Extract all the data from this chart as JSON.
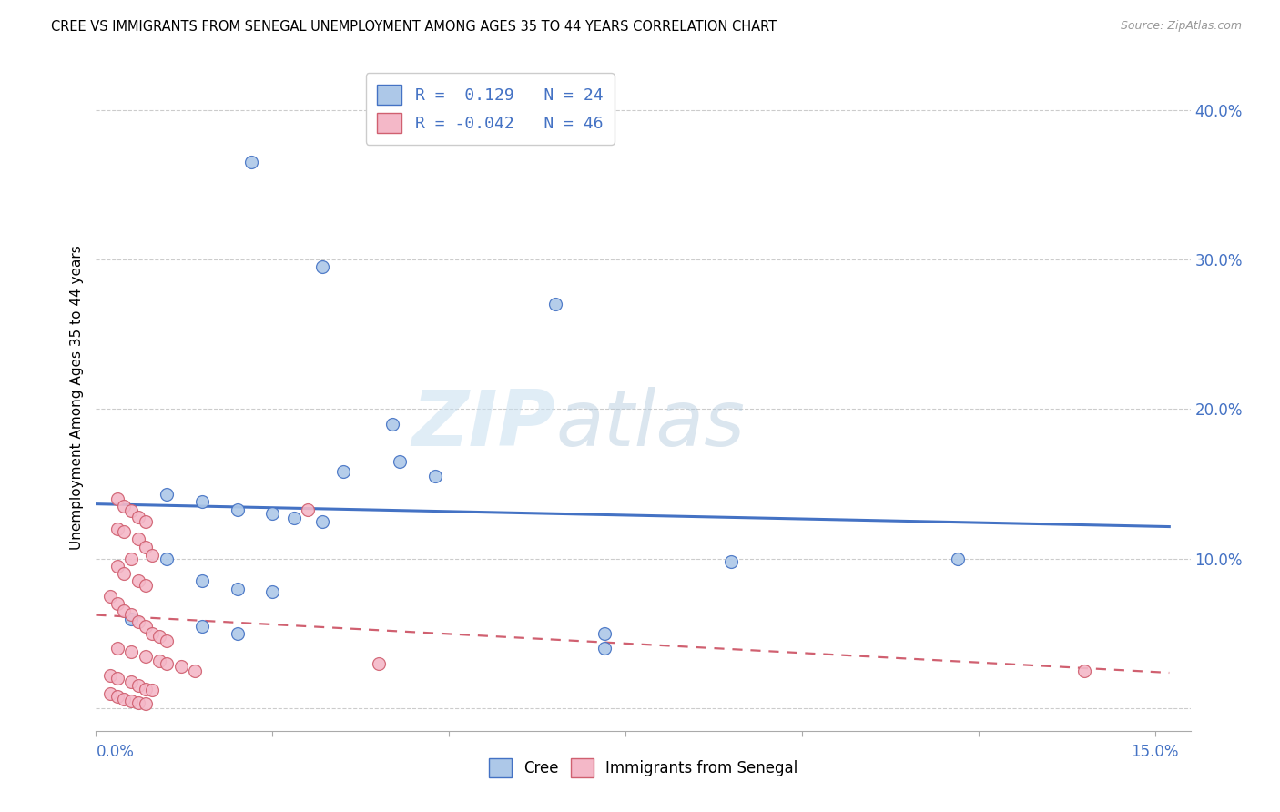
{
  "title": "CREE VS IMMIGRANTS FROM SENEGAL UNEMPLOYMENT AMONG AGES 35 TO 44 YEARS CORRELATION CHART",
  "source": "Source: ZipAtlas.com",
  "ylabel": "Unemployment Among Ages 35 to 44 years",
  "xlim": [
    0.0,
    0.155
  ],
  "ylim": [
    -0.015,
    0.43
  ],
  "yticks": [
    0.0,
    0.1,
    0.2,
    0.3,
    0.4
  ],
  "ytick_labels": [
    "",
    "10.0%",
    "20.0%",
    "30.0%",
    "40.0%"
  ],
  "xticks": [
    0.0,
    0.025,
    0.05,
    0.075,
    0.1,
    0.125,
    0.15
  ],
  "cree_R": "0.129",
  "cree_N": 24,
  "senegal_R": "-0.042",
  "senegal_N": 46,
  "cree_color": "#adc8e8",
  "cree_line_color": "#4472c4",
  "senegal_color": "#f4b8c8",
  "senegal_line_color": "#d06070",
  "watermark_zip": "ZIP",
  "watermark_atlas": "atlas",
  "cree_points": [
    [
      0.022,
      0.365
    ],
    [
      0.032,
      0.295
    ],
    [
      0.065,
      0.27
    ],
    [
      0.042,
      0.19
    ],
    [
      0.043,
      0.165
    ],
    [
      0.035,
      0.158
    ],
    [
      0.048,
      0.155
    ],
    [
      0.01,
      0.143
    ],
    [
      0.015,
      0.138
    ],
    [
      0.02,
      0.133
    ],
    [
      0.025,
      0.13
    ],
    [
      0.028,
      0.127
    ],
    [
      0.032,
      0.125
    ],
    [
      0.01,
      0.1
    ],
    [
      0.015,
      0.085
    ],
    [
      0.02,
      0.08
    ],
    [
      0.025,
      0.078
    ],
    [
      0.005,
      0.06
    ],
    [
      0.015,
      0.055
    ],
    [
      0.02,
      0.05
    ],
    [
      0.072,
      0.05
    ],
    [
      0.072,
      0.04
    ],
    [
      0.09,
      0.098
    ],
    [
      0.122,
      0.1
    ]
  ],
  "senegal_points": [
    [
      0.003,
      0.14
    ],
    [
      0.004,
      0.135
    ],
    [
      0.005,
      0.132
    ],
    [
      0.006,
      0.128
    ],
    [
      0.007,
      0.125
    ],
    [
      0.003,
      0.12
    ],
    [
      0.004,
      0.118
    ],
    [
      0.006,
      0.113
    ],
    [
      0.007,
      0.108
    ],
    [
      0.008,
      0.102
    ],
    [
      0.005,
      0.1
    ],
    [
      0.003,
      0.095
    ],
    [
      0.004,
      0.09
    ],
    [
      0.006,
      0.085
    ],
    [
      0.007,
      0.082
    ],
    [
      0.002,
      0.075
    ],
    [
      0.003,
      0.07
    ],
    [
      0.004,
      0.065
    ],
    [
      0.005,
      0.063
    ],
    [
      0.006,
      0.058
    ],
    [
      0.007,
      0.055
    ],
    [
      0.008,
      0.05
    ],
    [
      0.009,
      0.048
    ],
    [
      0.01,
      0.045
    ],
    [
      0.003,
      0.04
    ],
    [
      0.005,
      0.038
    ],
    [
      0.007,
      0.035
    ],
    [
      0.009,
      0.032
    ],
    [
      0.01,
      0.03
    ],
    [
      0.012,
      0.028
    ],
    [
      0.014,
      0.025
    ],
    [
      0.002,
      0.022
    ],
    [
      0.003,
      0.02
    ],
    [
      0.005,
      0.018
    ],
    [
      0.006,
      0.015
    ],
    [
      0.007,
      0.013
    ],
    [
      0.008,
      0.012
    ],
    [
      0.002,
      0.01
    ],
    [
      0.003,
      0.008
    ],
    [
      0.004,
      0.006
    ],
    [
      0.005,
      0.005
    ],
    [
      0.006,
      0.004
    ],
    [
      0.007,
      0.003
    ],
    [
      0.03,
      0.133
    ],
    [
      0.04,
      0.03
    ],
    [
      0.14,
      0.025
    ]
  ]
}
